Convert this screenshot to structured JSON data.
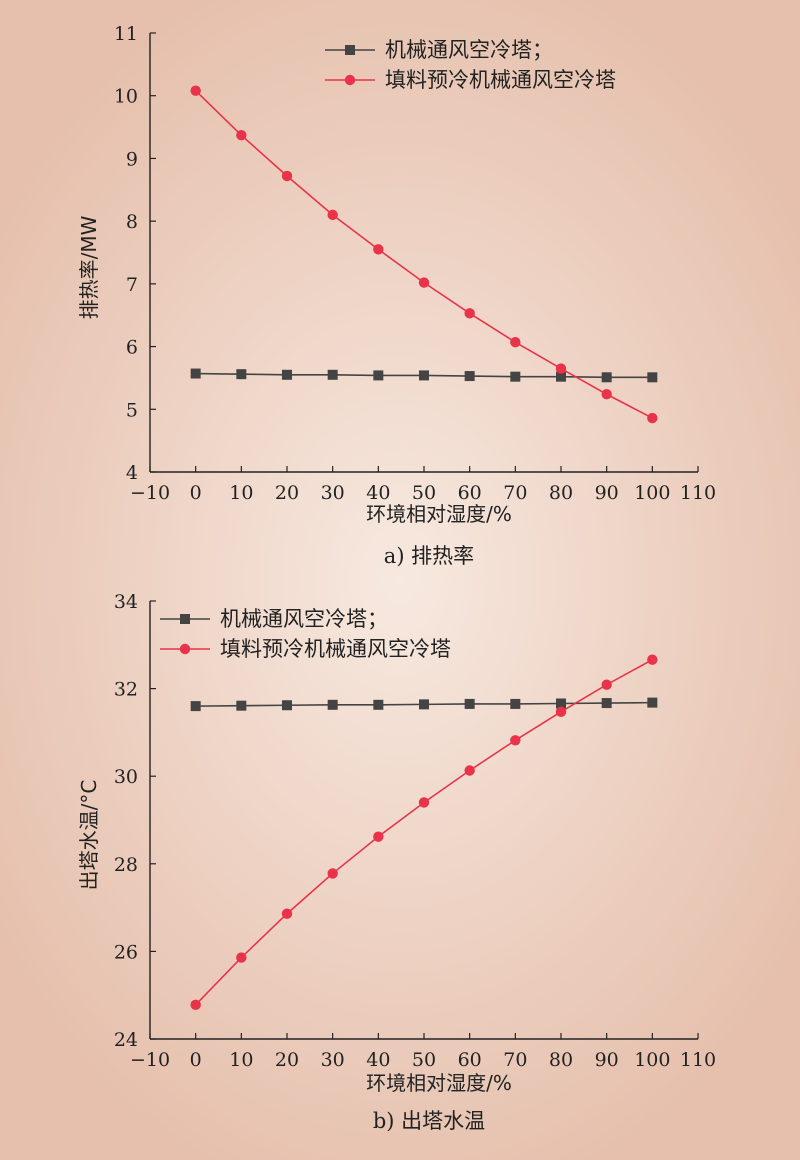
{
  "chart_data": [
    {
      "type": "line",
      "caption": "a) 排热率",
      "xlabel": "环境相对湿度/%",
      "ylabel": "排热率/MW",
      "xlim": [
        -10,
        110
      ],
      "ylim": [
        4,
        11
      ],
      "xticks": [
        -10,
        0,
        10,
        20,
        30,
        40,
        50,
        60,
        70,
        80,
        90,
        100,
        110
      ],
      "yticks": [
        4,
        5,
        6,
        7,
        8,
        9,
        10,
        11
      ],
      "x": [
        0,
        10,
        20,
        30,
        40,
        50,
        60,
        70,
        80,
        90,
        100
      ],
      "legend_position": "top-right",
      "series": [
        {
          "name": "机械通风空冷塔；",
          "color": "#444444",
          "marker": "square",
          "values": [
            5.57,
            5.56,
            5.55,
            5.55,
            5.54,
            5.54,
            5.53,
            5.52,
            5.52,
            5.51,
            5.51
          ]
        },
        {
          "name": "填料预冷机械通风空冷塔",
          "color": "#e8334a",
          "marker": "circle",
          "values": [
            10.08,
            9.37,
            8.72,
            8.1,
            7.55,
            7.02,
            6.53,
            6.07,
            5.65,
            5.24,
            4.86
          ]
        }
      ]
    },
    {
      "type": "line",
      "caption": "b) 出塔水温",
      "xlabel": "环境相对湿度/%",
      "ylabel": "出塔水温/°C",
      "xlim": [
        -10,
        110
      ],
      "ylim": [
        24,
        34
      ],
      "xticks": [
        -10,
        0,
        10,
        20,
        30,
        40,
        50,
        60,
        70,
        80,
        90,
        100,
        110
      ],
      "yticks": [
        24,
        26,
        28,
        30,
        32,
        34
      ],
      "x": [
        0,
        10,
        20,
        30,
        40,
        50,
        60,
        70,
        80,
        90,
        100
      ],
      "legend_position": "top-left",
      "series": [
        {
          "name": "机械通风空冷塔；",
          "color": "#444444",
          "marker": "square",
          "values": [
            31.6,
            31.61,
            31.62,
            31.63,
            31.63,
            31.64,
            31.65,
            31.65,
            31.66,
            31.67,
            31.68
          ]
        },
        {
          "name": "填料预冷机械通风空冷塔",
          "color": "#e8334a",
          "marker": "circle",
          "values": [
            24.78,
            25.86,
            26.86,
            27.78,
            28.62,
            29.4,
            30.13,
            30.82,
            31.47,
            32.09,
            32.66
          ]
        }
      ]
    }
  ]
}
